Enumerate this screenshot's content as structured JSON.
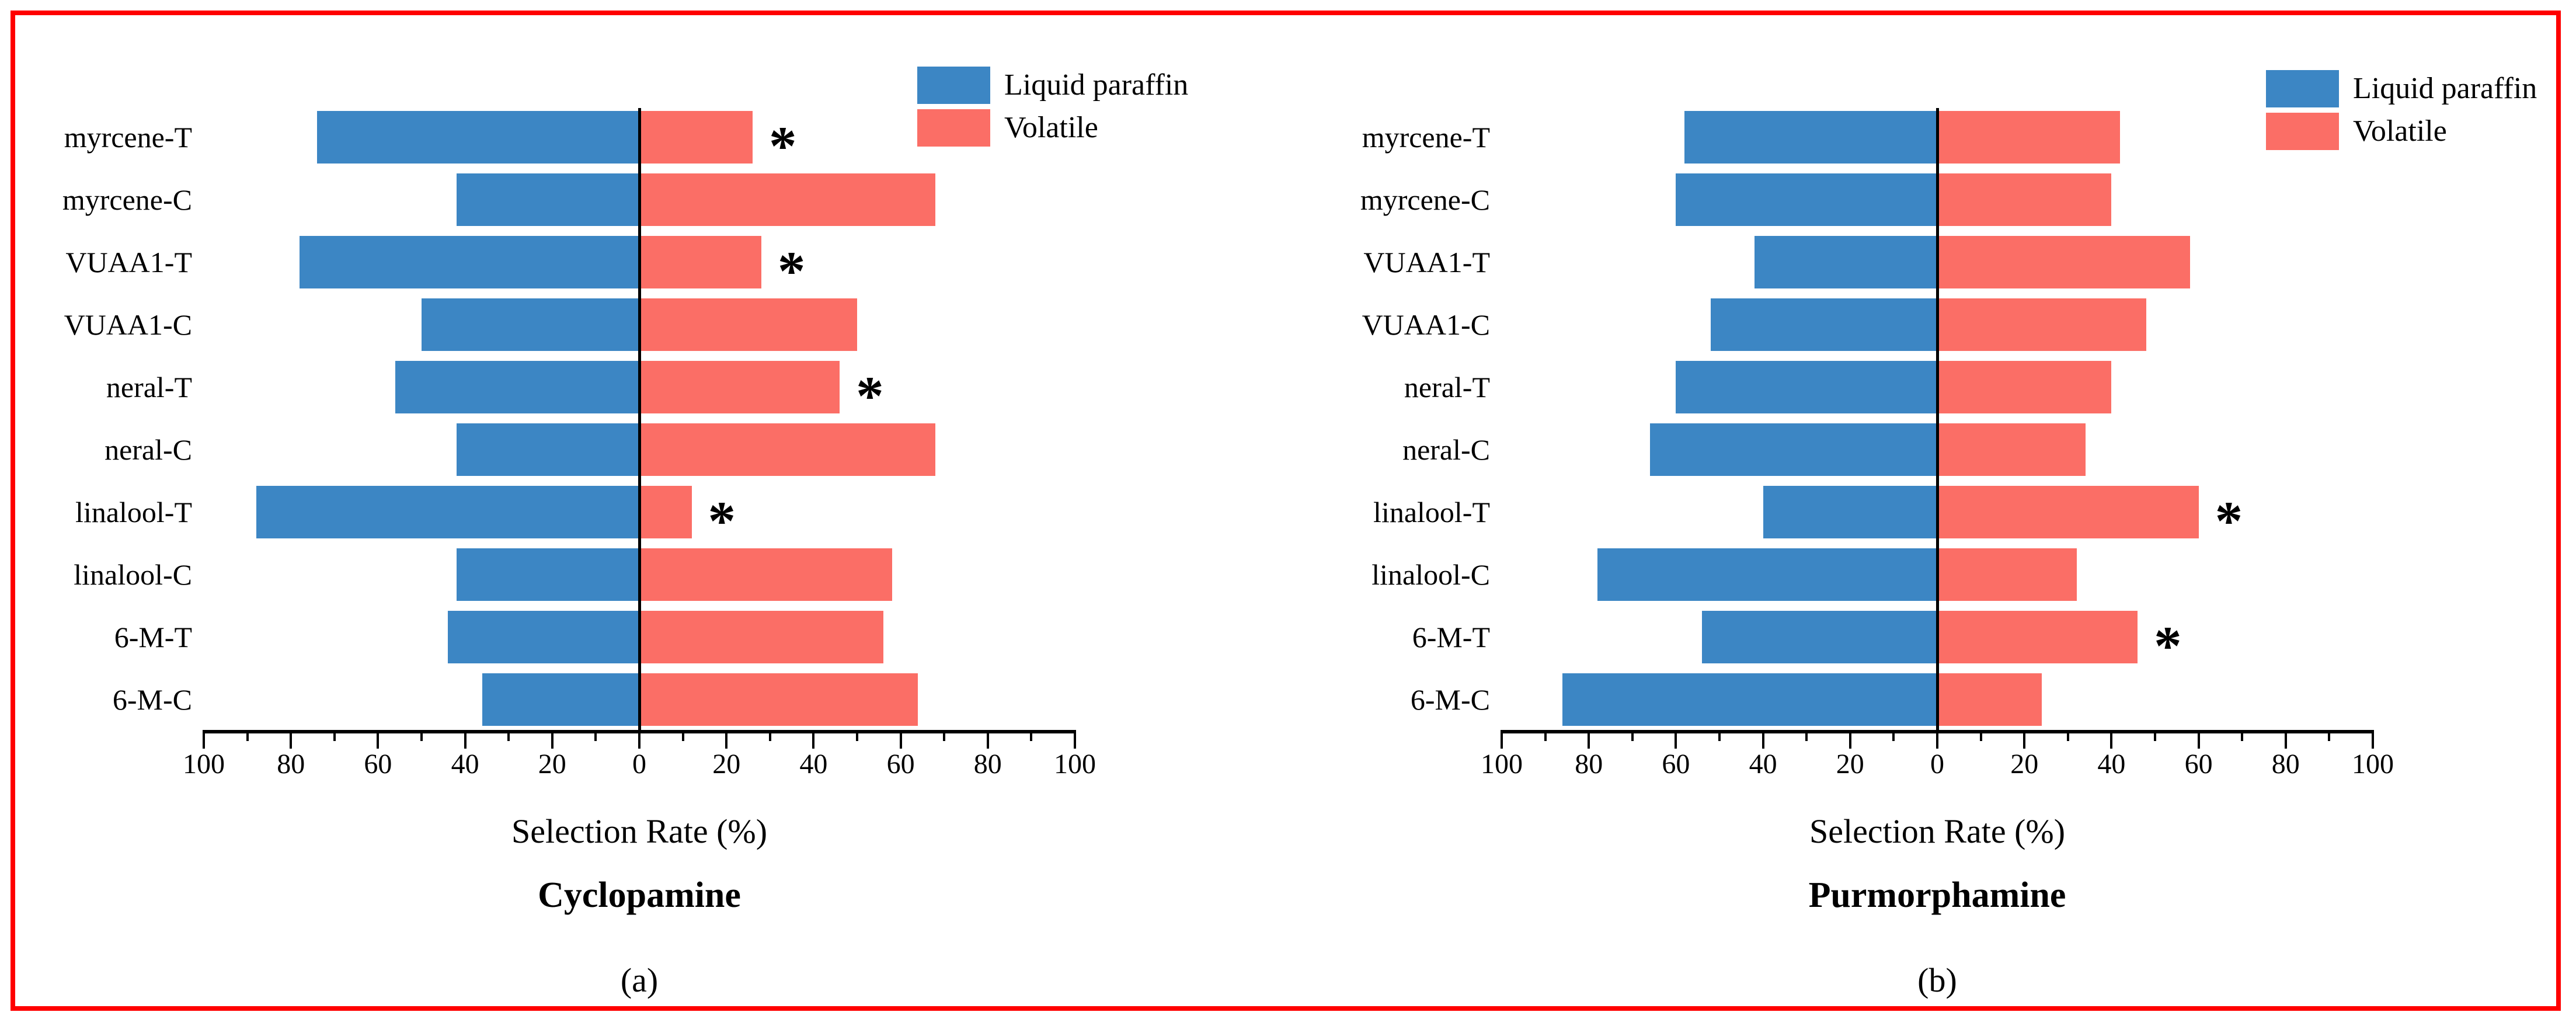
{
  "figure": {
    "background": "#FFFFFF",
    "border_color": "#FF0000"
  },
  "legend": {
    "items": [
      {
        "label": "Liquid paraffin",
        "color": "#3C86C4"
      },
      {
        "label": "Volatile",
        "color": "#FB6E66"
      }
    ]
  },
  "chart_data": [
    {
      "type": "bar",
      "orientation": "horizontal-diverging",
      "title": "Cyclopamine",
      "panel_label": "(a)",
      "xlabel": "Selection Rate (%)",
      "xlim": [
        -100,
        100
      ],
      "axis_tick_labels": [
        "100",
        "80",
        "60",
        "40",
        "20",
        "0",
        "20",
        "40",
        "60",
        "80",
        "100"
      ],
      "grid": false,
      "legend_position": "top-right",
      "categories": [
        "myrcene-T",
        "myrcene-C",
        "VUAA1-T",
        "VUAA1-C",
        "neral-T",
        "neral-C",
        "linalool-T",
        "linalool-C",
        "6-M-T",
        "6-M-C"
      ],
      "series": [
        {
          "name": "Liquid paraffin",
          "side": "left",
          "color": "#3C86C4",
          "values": [
            74,
            42,
            78,
            50,
            56,
            42,
            88,
            42,
            44,
            36
          ]
        },
        {
          "name": "Volatile",
          "side": "right",
          "color": "#FB6E66",
          "values": [
            26,
            68,
            28,
            50,
            46,
            68,
            12,
            58,
            56,
            64
          ]
        }
      ],
      "significance_marker": "*",
      "significant_categories": [
        "myrcene-T",
        "VUAA1-T",
        "neral-T",
        "linalool-T"
      ]
    },
    {
      "type": "bar",
      "orientation": "horizontal-diverging",
      "title": "Purmorphamine",
      "panel_label": "(b)",
      "xlabel": "Selection Rate (%)",
      "xlim": [
        -100,
        100
      ],
      "axis_tick_labels": [
        "100",
        "80",
        "60",
        "40",
        "20",
        "0",
        "20",
        "40",
        "60",
        "80",
        "100"
      ],
      "grid": false,
      "legend_position": "top-right",
      "categories": [
        "myrcene-T",
        "myrcene-C",
        "VUAA1-T",
        "VUAA1-C",
        "neral-T",
        "neral-C",
        "linalool-T",
        "linalool-C",
        "6-M-T",
        "6-M-C"
      ],
      "series": [
        {
          "name": "Liquid paraffin",
          "side": "left",
          "color": "#3C86C4",
          "values": [
            58,
            60,
            42,
            52,
            60,
            66,
            40,
            78,
            54,
            86
          ]
        },
        {
          "name": "Volatile",
          "side": "right",
          "color": "#FB6E66",
          "values": [
            42,
            40,
            58,
            48,
            40,
            34,
            60,
            32,
            46,
            24
          ]
        }
      ],
      "significance_marker": "*",
      "significant_categories": [
        "linalool-T",
        "6-M-T"
      ]
    }
  ]
}
